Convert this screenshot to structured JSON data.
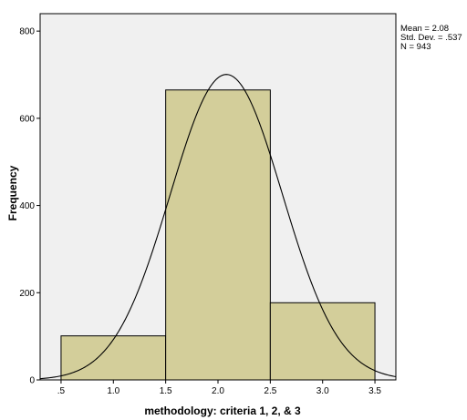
{
  "chart_data": {
    "type": "bar",
    "subtype": "histogram",
    "xlabel": "methodology: criteria 1, 2, & 3",
    "ylabel": "Frequency",
    "xlim": [
      0.3,
      3.7
    ],
    "ylim": [
      0,
      840
    ],
    "x_ticks": [
      0.5,
      1.0,
      1.5,
      2.0,
      2.5,
      3.0,
      3.5
    ],
    "x_tick_labels": [
      ".5",
      "1.0",
      "1.5",
      "2.0",
      "2.5",
      "3.0",
      "3.5"
    ],
    "y_ticks": [
      0,
      200,
      400,
      600,
      800
    ],
    "y_tick_labels": [
      "0",
      "200",
      "400",
      "600",
      "800"
    ],
    "bins": [
      {
        "start": 0.5,
        "end": 1.5,
        "value": 101
      },
      {
        "start": 1.5,
        "end": 2.5,
        "value": 665
      },
      {
        "start": 2.5,
        "end": 3.5,
        "value": 177
      }
    ],
    "normal_curve": {
      "mean": 2.08,
      "std_dev": 0.537,
      "n": 943,
      "bin_width": 1.0
    },
    "stats_labels": [
      "Mean = 2.08",
      "Std. Dev. = .537",
      "N = 943"
    ],
    "grid": false,
    "colors": {
      "plot_background": "#f0f0f0",
      "bar_fill": "#d3ce9a",
      "bar_stroke": "#000000",
      "curve": "#000000"
    }
  }
}
